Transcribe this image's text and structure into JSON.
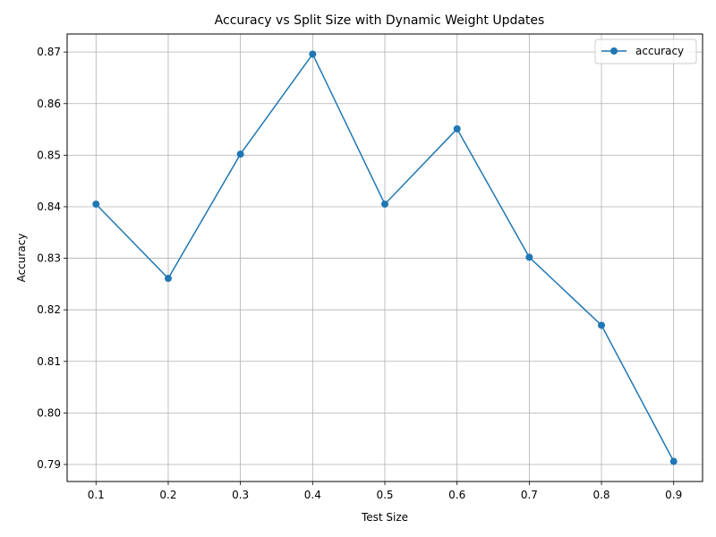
{
  "chart_data": {
    "type": "line",
    "title": "Accuracy vs Split Size with Dynamic Weight Updates",
    "xlabel": "Test Size",
    "ylabel": "Accuracy",
    "x": [
      0.1,
      0.2,
      0.3,
      0.4,
      0.5,
      0.6,
      0.7,
      0.8,
      0.9
    ],
    "x_tick_labels": [
      "0.1",
      "0.2",
      "0.3",
      "0.4",
      "0.5",
      "0.6",
      "0.7",
      "0.8",
      "0.9"
    ],
    "y_ticks": [
      0.79,
      0.8,
      0.81,
      0.82,
      0.83,
      0.84,
      0.85,
      0.86,
      0.87
    ],
    "y_tick_labels": [
      "0.79",
      "0.80",
      "0.81",
      "0.82",
      "0.83",
      "0.84",
      "0.85",
      "0.86",
      "0.87"
    ],
    "xlim": [
      0.06,
      0.94
    ],
    "ylim": [
      0.7867,
      0.8735
    ],
    "grid": true,
    "legend_position": "top-right",
    "series": [
      {
        "name": "accuracy",
        "color": "#1f77b4",
        "marker": "circle",
        "values": [
          0.8405,
          0.8261,
          0.8502,
          0.8696,
          0.8405,
          0.8551,
          0.8302,
          0.817,
          0.7906
        ]
      }
    ]
  }
}
